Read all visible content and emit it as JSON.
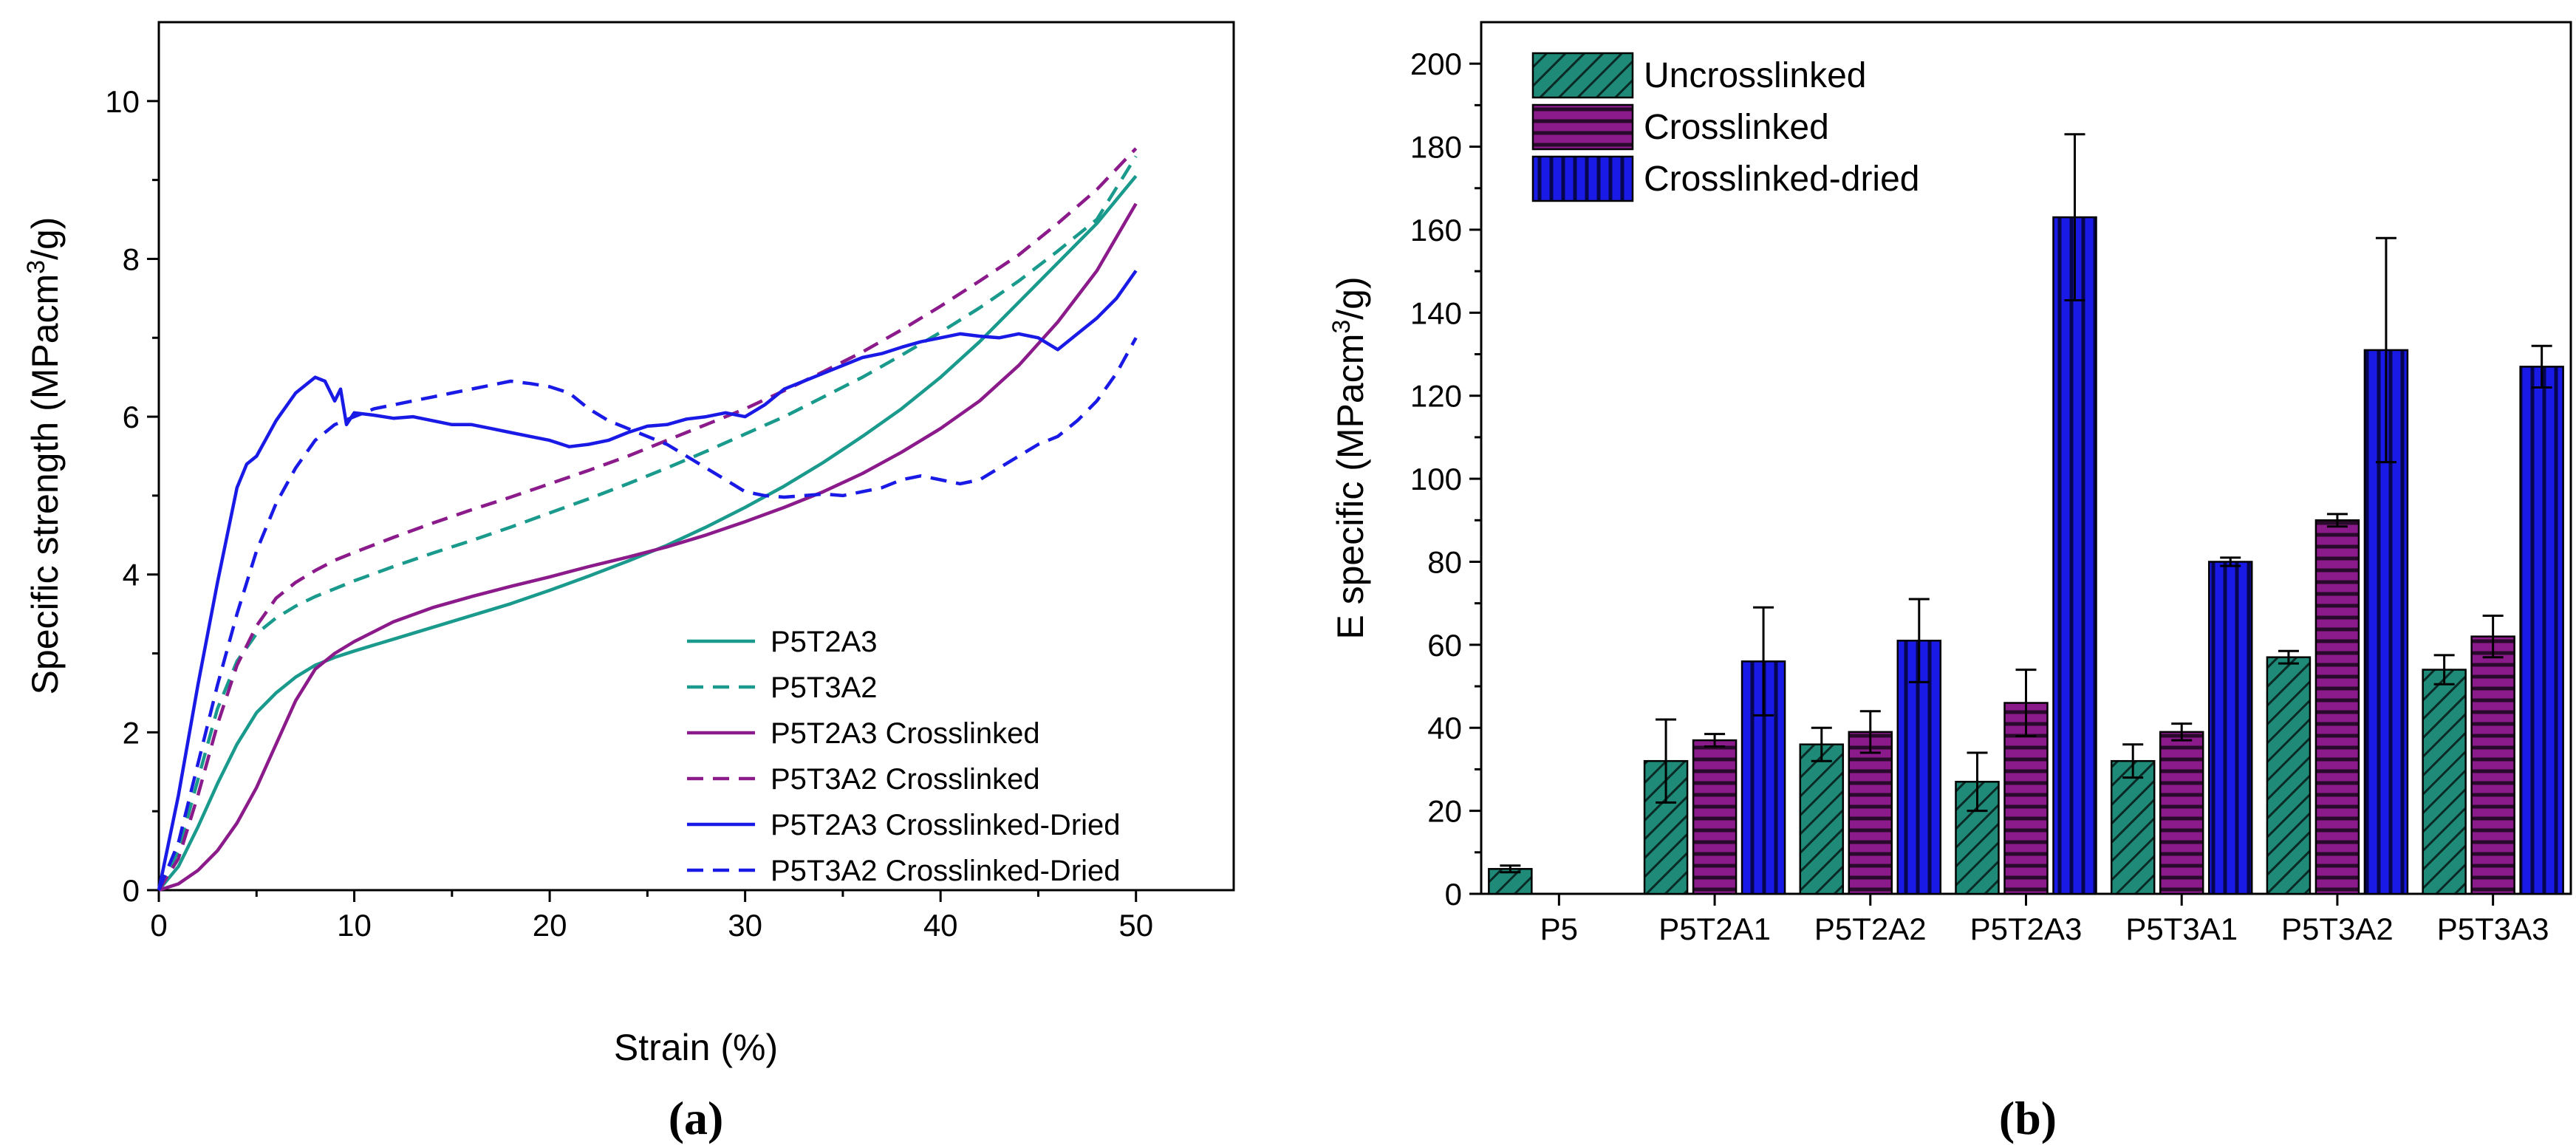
{
  "chart_data": [
    {
      "type": "line",
      "panel_label": "(a)",
      "title": "",
      "xlabel": "Strain (%)",
      "ylabel_main": "Specific strength (MPacm",
      "ylabel_sup": "3",
      "ylabel_tail": "/g)",
      "xlim": [
        0,
        55
      ],
      "ylim": [
        0,
        11
      ],
      "xticks": [
        0,
        10,
        20,
        30,
        40,
        50
      ],
      "yticks": [
        0,
        2,
        4,
        6,
        8,
        10
      ],
      "grid": false,
      "legend_position": "bottom-right",
      "series": [
        {
          "name": "P5T2A3",
          "color": "#1a9a8c",
          "dash": "solid",
          "x": [
            0,
            1,
            2,
            3,
            4,
            5,
            6,
            7,
            8,
            9,
            10,
            12,
            14,
            16,
            18,
            20,
            22,
            24,
            26,
            28,
            30,
            32,
            34,
            36,
            38,
            40,
            42,
            44,
            46,
            48,
            50
          ],
          "y": [
            0,
            0.3,
            0.8,
            1.35,
            1.85,
            2.25,
            2.5,
            2.7,
            2.85,
            2.95,
            3.03,
            3.18,
            3.33,
            3.48,
            3.63,
            3.8,
            3.98,
            4.17,
            4.37,
            4.6,
            4.85,
            5.12,
            5.42,
            5.75,
            6.1,
            6.5,
            6.95,
            7.45,
            7.95,
            8.45,
            9.05
          ]
        },
        {
          "name": "P5T3A2",
          "color": "#1a9a8c",
          "dash": "dashed",
          "x": [
            0,
            1,
            2,
            3,
            4,
            5,
            6,
            7,
            8,
            9,
            10,
            12,
            14,
            16,
            18,
            20,
            22,
            24,
            26,
            28,
            30,
            32,
            34,
            36,
            38,
            40,
            42,
            44,
            46,
            48,
            50
          ],
          "y": [
            0,
            0.5,
            1.4,
            2.3,
            2.9,
            3.25,
            3.45,
            3.6,
            3.72,
            3.82,
            3.92,
            4.1,
            4.27,
            4.43,
            4.6,
            4.78,
            4.96,
            5.15,
            5.35,
            5.56,
            5.78,
            6.0,
            6.25,
            6.5,
            6.78,
            7.07,
            7.38,
            7.72,
            8.1,
            8.5,
            9.3
          ]
        },
        {
          "name": "P5T2A3 Crosslinked",
          "color": "#8b1a8b",
          "dash": "solid",
          "x": [
            0,
            1,
            2,
            3,
            4,
            5,
            6,
            7,
            8,
            9,
            10,
            12,
            14,
            16,
            18,
            20,
            22,
            24,
            26,
            28,
            30,
            32,
            34,
            36,
            38,
            40,
            42,
            44,
            46,
            48,
            50
          ],
          "y": [
            0,
            0.08,
            0.25,
            0.5,
            0.85,
            1.3,
            1.85,
            2.4,
            2.8,
            3.0,
            3.15,
            3.4,
            3.58,
            3.72,
            3.85,
            3.97,
            4.1,
            4.22,
            4.35,
            4.5,
            4.67,
            4.85,
            5.05,
            5.28,
            5.55,
            5.85,
            6.2,
            6.65,
            7.2,
            7.85,
            8.7
          ]
        },
        {
          "name": "P5T3A2 Crosslinked",
          "color": "#8b1a8b",
          "dash": "dashed",
          "x": [
            0,
            1,
            2,
            3,
            4,
            5,
            6,
            7,
            8,
            9,
            10,
            12,
            14,
            16,
            18,
            20,
            22,
            24,
            26,
            28,
            30,
            32,
            34,
            36,
            38,
            40,
            42,
            44,
            46,
            48,
            50
          ],
          "y": [
            0,
            0.4,
            1.2,
            2.1,
            2.85,
            3.35,
            3.7,
            3.9,
            4.05,
            4.18,
            4.28,
            4.47,
            4.65,
            4.82,
            4.98,
            5.15,
            5.32,
            5.5,
            5.7,
            5.9,
            6.1,
            6.33,
            6.57,
            6.82,
            7.1,
            7.4,
            7.72,
            8.05,
            8.45,
            8.88,
            9.4
          ]
        },
        {
          "name": "P5T2A3 Crosslinked-Dried",
          "color": "#1a1ae6",
          "dash": "solid",
          "x": [
            0,
            1,
            2,
            3,
            4,
            4.5,
            5,
            6,
            7,
            8,
            8.5,
            9,
            9.3,
            9.6,
            10,
            11,
            12,
            13,
            14,
            15,
            16,
            17,
            18,
            19,
            20,
            21,
            22,
            23,
            24,
            25,
            26,
            27,
            28,
            29,
            30,
            31,
            32,
            33,
            34,
            35,
            36,
            37,
            38,
            39,
            40,
            41,
            42,
            43,
            44,
            45,
            46,
            47,
            48,
            49,
            50
          ],
          "y": [
            0,
            1.2,
            2.6,
            3.9,
            5.1,
            5.4,
            5.5,
            5.95,
            6.3,
            6.5,
            6.45,
            6.2,
            6.35,
            5.9,
            6.05,
            6.02,
            5.98,
            6.0,
            5.95,
            5.9,
            5.9,
            5.85,
            5.8,
            5.75,
            5.7,
            5.62,
            5.65,
            5.7,
            5.8,
            5.88,
            5.9,
            5.97,
            6.0,
            6.05,
            6.0,
            6.15,
            6.35,
            6.45,
            6.55,
            6.65,
            6.75,
            6.8,
            6.88,
            6.95,
            7.0,
            7.05,
            7.02,
            7.0,
            7.05,
            7.0,
            6.85,
            7.05,
            7.25,
            7.5,
            7.85
          ]
        },
        {
          "name": "P5T3A2 Crosslinked-Dried",
          "color": "#1a1ae6",
          "dash": "dashed",
          "x": [
            0,
            1,
            2,
            3,
            4,
            5,
            6,
            7,
            8,
            9,
            10,
            11,
            12,
            13,
            14,
            15,
            16,
            17,
            18,
            19,
            20,
            21,
            22,
            23,
            24,
            25,
            26,
            27,
            28,
            29,
            30,
            31,
            32,
            33,
            34,
            35,
            36,
            37,
            38,
            39,
            40,
            41,
            42,
            43,
            44,
            45,
            46,
            47,
            48,
            49,
            50
          ],
          "y": [
            0,
            0.6,
            1.6,
            2.6,
            3.5,
            4.3,
            4.9,
            5.35,
            5.7,
            5.9,
            6.0,
            6.1,
            6.15,
            6.2,
            6.25,
            6.3,
            6.35,
            6.4,
            6.45,
            6.42,
            6.38,
            6.3,
            6.1,
            5.95,
            5.85,
            5.75,
            5.65,
            5.5,
            5.35,
            5.2,
            5.05,
            5.0,
            4.98,
            5.0,
            5.02,
            5.0,
            5.05,
            5.1,
            5.2,
            5.25,
            5.2,
            5.15,
            5.2,
            5.35,
            5.5,
            5.65,
            5.75,
            5.95,
            6.2,
            6.55,
            7.0
          ]
        }
      ]
    },
    {
      "type": "bar",
      "panel_label": "(b)",
      "title": "",
      "xlabel": "",
      "ylabel_main": "E specific (MPacm",
      "ylabel_sup": "3",
      "ylabel_tail": "/g)",
      "ylim": [
        0,
        210
      ],
      "yticks": [
        0,
        20,
        40,
        60,
        80,
        100,
        120,
        140,
        160,
        180,
        200
      ],
      "grid": false,
      "legend_position": "top-left",
      "categories": [
        "P5",
        "P5T2A1",
        "P5T2A2",
        "P5T2A3",
        "P5T3A1",
        "P5T3A2",
        "P5T3A3"
      ],
      "series": [
        {
          "name": "Uncrosslinked",
          "color": "#1f8a78",
          "pattern": "diagonal",
          "values": [
            6,
            32,
            36,
            27,
            32,
            57,
            54
          ],
          "errors": [
            0.8,
            10,
            4,
            7,
            4,
            1.5,
            3.5
          ]
        },
        {
          "name": "Crosslinked",
          "color": "#8b1a8b",
          "pattern": "horizontal",
          "values": [
            null,
            37,
            39,
            46,
            39,
            90,
            62
          ],
          "errors": [
            null,
            1.5,
            5,
            8,
            2,
            1.5,
            5
          ]
        },
        {
          "name": "Crosslinked-dried",
          "color": "#1a1ae6",
          "pattern": "vertical",
          "values": [
            null,
            56,
            61,
            163,
            80,
            131,
            127
          ],
          "errors": [
            null,
            13,
            10,
            20,
            1,
            27,
            5
          ]
        }
      ]
    }
  ]
}
